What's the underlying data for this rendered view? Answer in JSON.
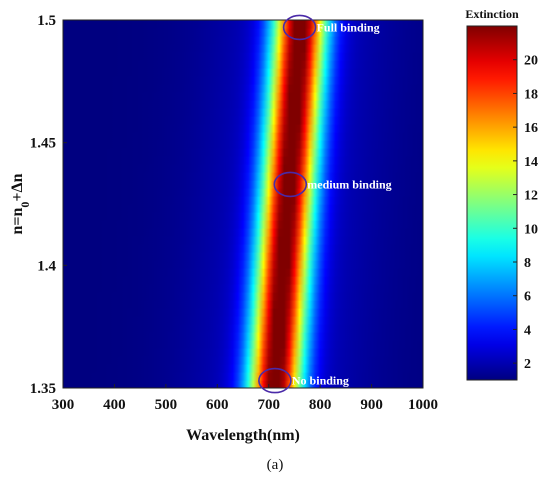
{
  "chart_data": {
    "type": "heatmap",
    "xlabel": "Wavelength(nm)",
    "ylabel": "n=n0+Δn",
    "xlim": [
      300,
      1000
    ],
    "ylim": [
      1.35,
      1.5
    ],
    "x_ticks": [
      "300",
      "400",
      "500",
      "600",
      "700",
      "800",
      "900",
      "1000"
    ],
    "y_ticks": [
      "1.35",
      "1.4",
      "1.45",
      "1.5"
    ],
    "colorbar": {
      "title": "Extinction",
      "range": [
        1,
        22
      ],
      "ticks": [
        "2",
        "4",
        "6",
        "8",
        "10",
        "12",
        "14",
        "16",
        "18",
        "20"
      ],
      "colormap": "jet"
    },
    "resonance_peak": [
      {
        "n": 1.35,
        "wavelength": 712,
        "extinction": 21.5
      },
      {
        "n": 1.4,
        "wavelength": 728,
        "extinction": 21.5
      },
      {
        "n": 1.45,
        "wavelength": 745,
        "extinction": 21.5
      },
      {
        "n": 1.5,
        "wavelength": 762,
        "extinction": 21.5
      }
    ],
    "annotations": [
      {
        "label": "Full binding",
        "n": 1.497,
        "wavelength": 760
      },
      {
        "label": "medium binding",
        "n": 1.433,
        "wavelength": 742
      },
      {
        "label": "No binding",
        "n": 1.353,
        "wavelength": 712
      }
    ],
    "grid": false
  },
  "caption": "(a)"
}
